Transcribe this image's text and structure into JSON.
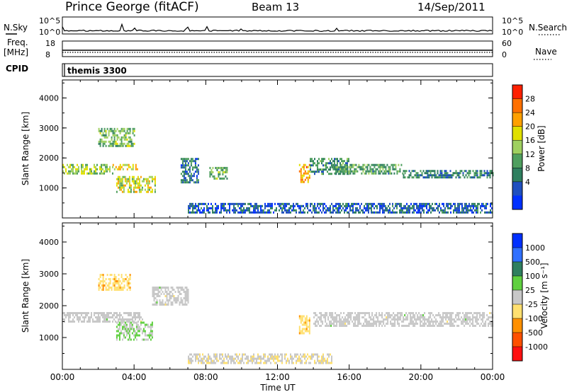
{
  "header": {
    "station": "Prince George (fitACF)",
    "beam": "Beam 13",
    "date": "14/Sep/2011"
  },
  "strips": {
    "nsky_label": "N.Sky",
    "nsky_ticks": [
      "10^5",
      "10^0"
    ],
    "nsearch_label": "N.Search",
    "nsearch_ticks": [
      "10^5",
      "10^0"
    ],
    "freq_label": "Freq.",
    "freq_unit": "[MHz]",
    "freq_ticks": [
      "18",
      "8"
    ],
    "nave_label": "Nave",
    "nave_ticks": [
      "60",
      "0"
    ],
    "cpid_label": "CPID",
    "cpid_value": "themis 3300"
  },
  "colors": {
    "power_scale": [
      "#0030ff",
      "#1f4fbf",
      "#2f7f5f",
      "#4f9f5f",
      "#9fd060",
      "#e0e000",
      "#ffa000",
      "#ff7000",
      "#ff2000"
    ],
    "velocity_scale": [
      "#0030ff",
      "#3070ff",
      "#2f7f5f",
      "#60d040",
      "#c8c8c8",
      "#ffe070",
      "#ff9000",
      "#ff5000",
      "#ff1010"
    ],
    "ground_scatter": "#c8c8c8"
  },
  "chart_data": [
    {
      "type": "heatmap",
      "parameter": "Power",
      "ylabel": "Slant Range [km]",
      "xlabel": "",
      "x_range_hours": [
        0,
        24
      ],
      "ylim": [
        0,
        4600
      ],
      "yticks": [
        "1000",
        "2000",
        "3000",
        "4000"
      ],
      "colorbar": {
        "label": "Power [dB]",
        "ticks": [
          "4",
          "8",
          "12",
          "16",
          "20",
          "24",
          "28"
        ],
        "range": [
          0,
          32
        ]
      },
      "echo_regions": [
        {
          "t": [
            0.0,
            2.8
          ],
          "r": [
            1500,
            1800
          ],
          "v": 16
        },
        {
          "t": [
            2.8,
            4.2
          ],
          "r": [
            1600,
            1800
          ],
          "v": 20
        },
        {
          "t": [
            2.0,
            4.0
          ],
          "r": [
            2400,
            3000
          ],
          "v": 14
        },
        {
          "t": [
            3.0,
            5.2
          ],
          "r": [
            900,
            1400
          ],
          "v": 18
        },
        {
          "t": [
            6.6,
            7.6
          ],
          "r": [
            1200,
            2000
          ],
          "v": 8
        },
        {
          "t": [
            8.2,
            9.2
          ],
          "r": [
            1300,
            1700
          ],
          "v": 14
        },
        {
          "t": [
            13.2,
            13.8
          ],
          "r": [
            1200,
            1800
          ],
          "v": 24
        },
        {
          "t": [
            13.8,
            16.0
          ],
          "r": [
            1500,
            2000
          ],
          "v": 10
        },
        {
          "t": [
            15.0,
            19.0
          ],
          "r": [
            1500,
            1800
          ],
          "v": 12
        },
        {
          "t": [
            19.0,
            24.0
          ],
          "r": [
            1350,
            1600
          ],
          "v": 9
        },
        {
          "t": [
            7.0,
            24.0
          ],
          "r": [
            180,
            500
          ],
          "v": 6
        }
      ]
    },
    {
      "type": "heatmap",
      "parameter": "Velocity",
      "ylabel": "Slant Range [km]",
      "xlabel": "Time UT",
      "x_range_hours": [
        0,
        24
      ],
      "xticks": [
        "00:00",
        "04:00",
        "08:00",
        "12:00",
        "16:00",
        "20:00",
        "00:00"
      ],
      "ylim": [
        0,
        4600
      ],
      "yticks": [
        "1000",
        "2000",
        "3000",
        "4000"
      ],
      "colorbar": {
        "label": "Velocity [m s⁻¹]",
        "ticks": [
          "1000",
          "500",
          "100",
          "25",
          "-25",
          "-100",
          "-500",
          "-1000"
        ],
        "range": [
          -1200,
          1200
        ]
      },
      "echo_regions": [
        {
          "t": [
            0.0,
            4.5
          ],
          "r": [
            1500,
            1800
          ],
          "v": 0
        },
        {
          "t": [
            2.0,
            3.8
          ],
          "r": [
            2500,
            3000
          ],
          "v": -300
        },
        {
          "t": [
            3.0,
            5.0
          ],
          "r": [
            900,
            1500
          ],
          "v": 150
        },
        {
          "t": [
            5.0,
            7.0
          ],
          "r": [
            2000,
            2600
          ],
          "v": 0
        },
        {
          "t": [
            13.2,
            13.8
          ],
          "r": [
            1100,
            1700
          ],
          "v": -300
        },
        {
          "t": [
            14.0,
            24.0
          ],
          "r": [
            1350,
            1800
          ],
          "v": 0
        },
        {
          "t": [
            7.0,
            15.0
          ],
          "r": [
            180,
            500
          ],
          "v": -80
        }
      ]
    }
  ]
}
